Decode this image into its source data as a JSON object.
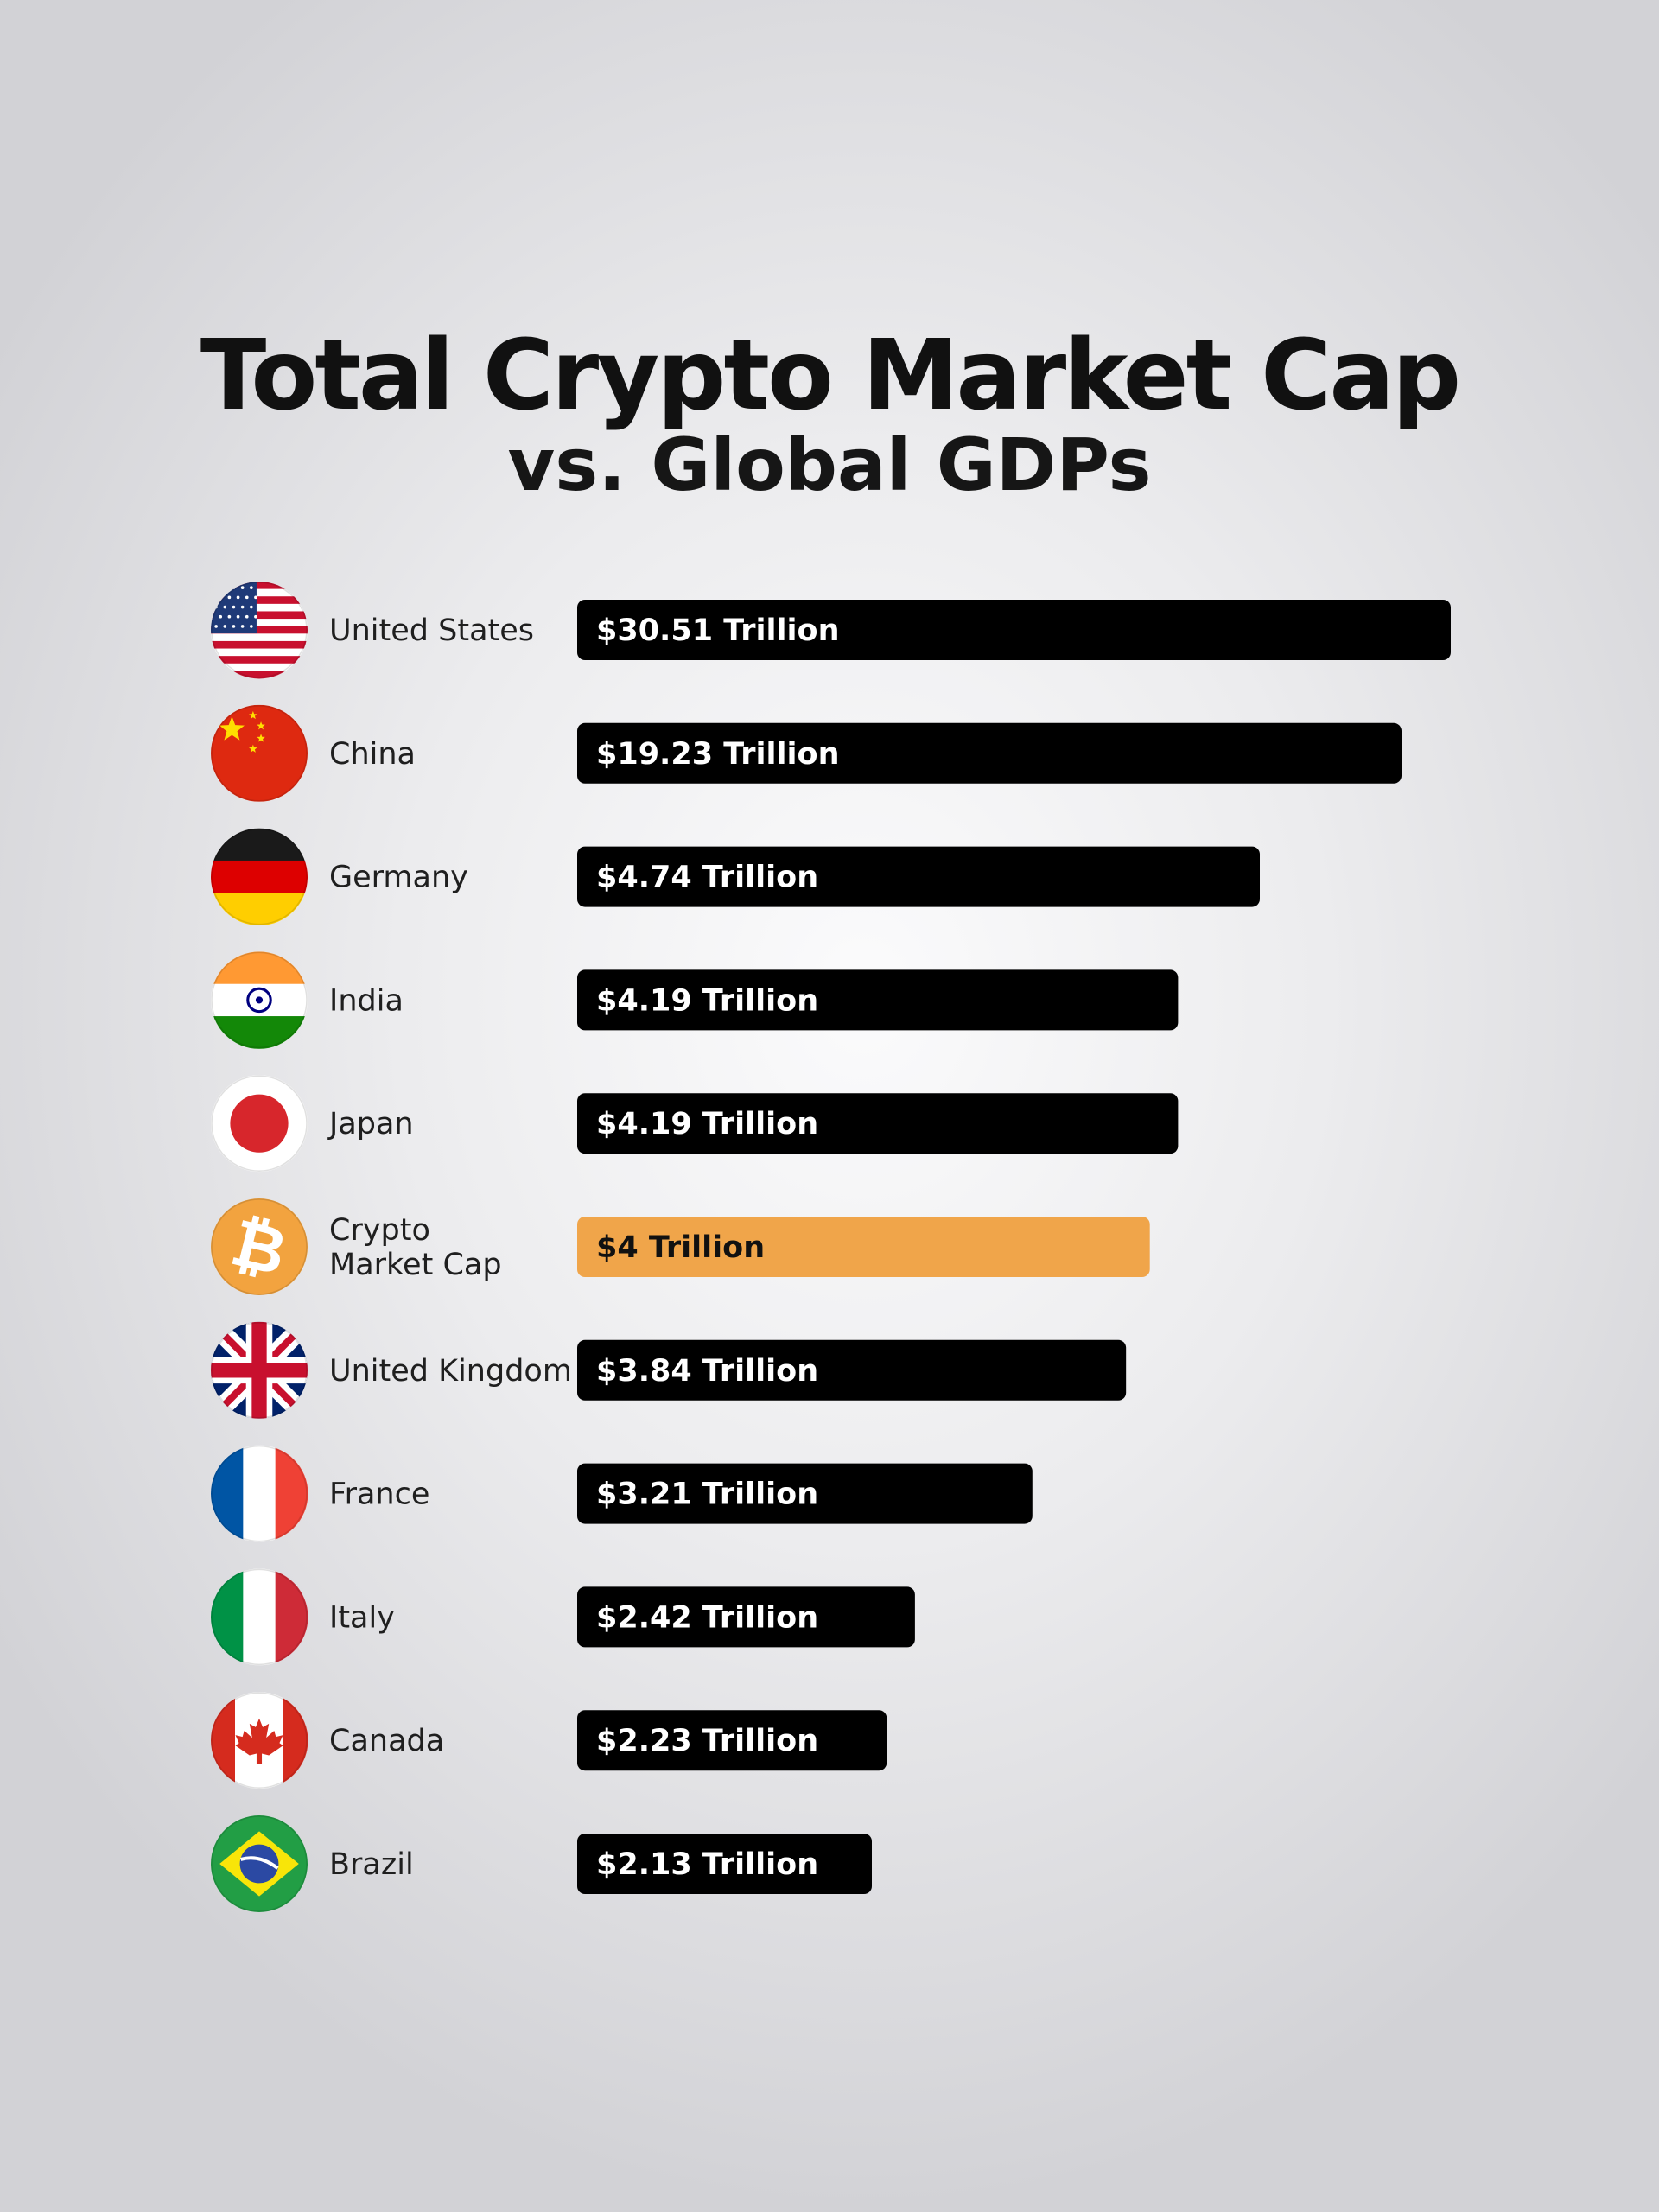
{
  "chart_data": {
    "type": "bar",
    "orientation": "horizontal",
    "title": "Total Crypto Market Cap",
    "subtitle": "vs. Global GDPs",
    "categories": [
      "United States",
      "China",
      "Germany",
      "India",
      "Japan",
      "Crypto Market Cap",
      "United Kingdom",
      "France",
      "Italy",
      "Canada",
      "Brazil"
    ],
    "values": [
      30.51,
      19.23,
      4.74,
      4.19,
      4.19,
      4,
      3.84,
      3.21,
      2.42,
      2.23,
      2.13
    ],
    "value_labels": [
      "$30.51 Trillion",
      "$19.23 Trillion",
      "$4.74 Trillion",
      "$4.19 Trillion",
      "$4.19 Trillion",
      "$4 Trillion",
      "$3.84 Trillion",
      "$3.21 Trillion",
      "$2.42 Trillion",
      "$2.23 Trillion",
      "$2.13 Trillion"
    ],
    "icons": [
      "flag-united-states-icon",
      "flag-china-icon",
      "flag-germany-icon",
      "flag-india-icon",
      "flag-japan-icon",
      "bitcoin-icon",
      "flag-united-kingdom-icon",
      "flag-france-icon",
      "flag-italy-icon",
      "flag-canada-icon",
      "flag-brazil-icon"
    ],
    "highlight_category": "Crypto Market Cap",
    "colors": {
      "bar": "#000000",
      "highlight_bar": "#f0a54a",
      "bar_text": "#ffffff",
      "highlight_text": "#111111"
    },
    "xlabel": "",
    "ylabel": "",
    "grid": false,
    "legend": "none"
  }
}
